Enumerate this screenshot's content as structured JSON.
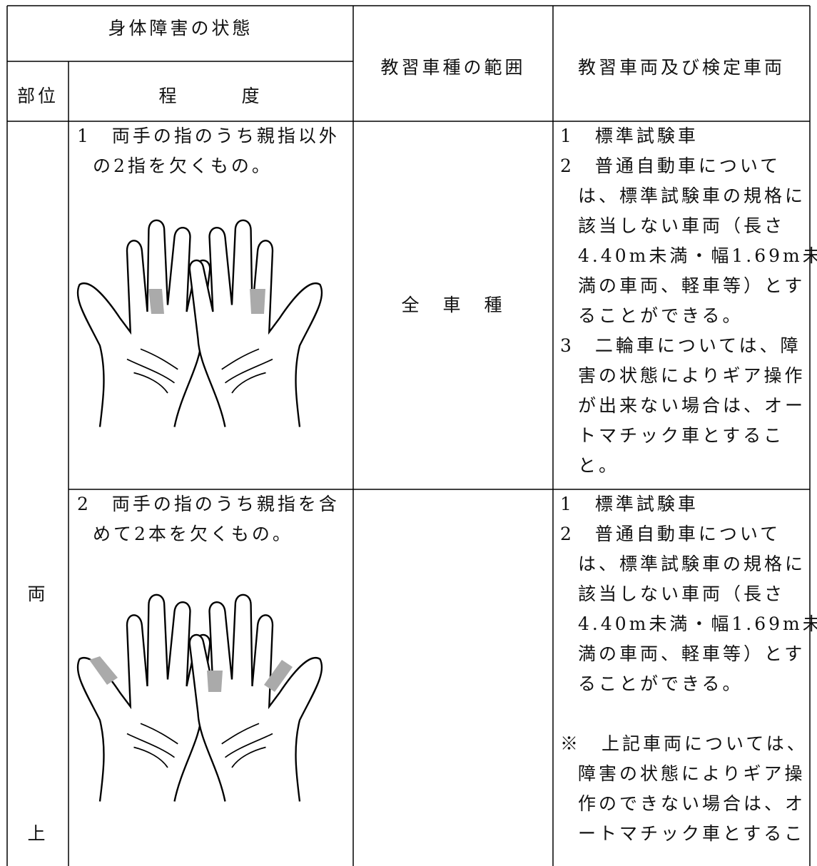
{
  "header": {
    "group": "身体障害の状態",
    "part": "部位",
    "degree": "程　　　度",
    "range": "教習車種の範囲",
    "vehicles": "教習車両及び検定車両"
  },
  "body_part": [
    "両",
    "上"
  ],
  "rows": [
    {
      "degree_lines": [
        "1　両手の指のうち親指以外",
        "の2指を欠くもの。"
      ],
      "range": "全　車　種",
      "vehicle_lines": [
        "1　標準試験車",
        "2　普通自動車について",
        "は、標準試験車の規格に",
        "該当しない車両（長さ",
        "4.40m未満・幅1.69m未",
        "満の車両、軽車等）とす",
        "ることができる。",
        "3　二輪車については、障",
        "害の状態によりギア操作",
        "が出来ない場合は、オー",
        "トマチック車とするこ",
        "と。"
      ]
    },
    {
      "degree_lines": [
        "2　両手の指のうち親指を含",
        "めて2本を欠くもの。"
      ],
      "vehicle_lines": [
        "1　標準試験車",
        "2　普通自動車について",
        "は、標準試験車の規格に",
        "該当しない車両（長さ",
        "4.40m未満・幅1.69m未",
        "満の車両、軽車等）とす",
        "ることができる。",
        null,
        "※　上記車両については、",
        "障害の状態によりギア操",
        "作のできない場合は、オ",
        "ートマチック車とするこ"
      ]
    }
  ]
}
